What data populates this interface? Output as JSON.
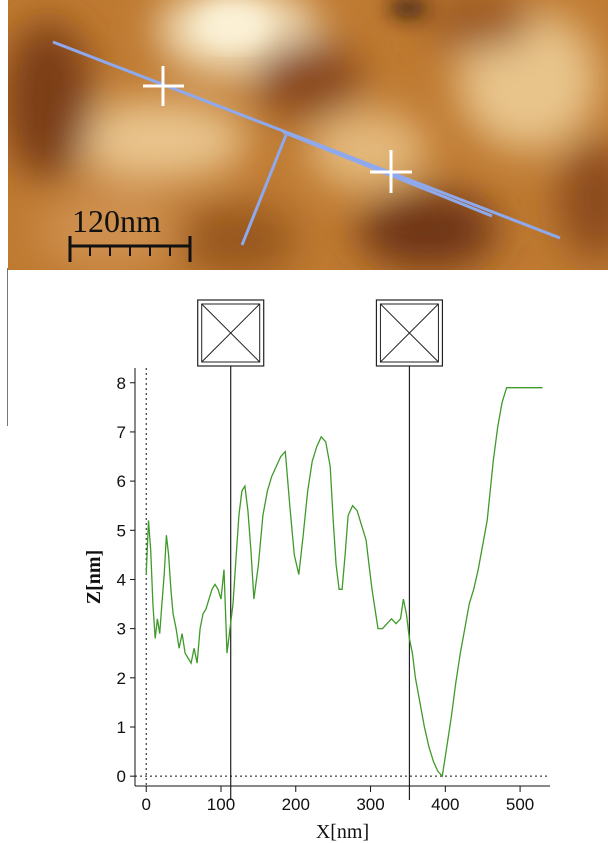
{
  "afm_image": {
    "scale_bar_label": "120nm",
    "colormap": [
      "#5a2a0c",
      "#b5661f",
      "#f2e3bf"
    ]
  },
  "chart_data": {
    "type": "line",
    "title": "",
    "xlabel": "X[nm]",
    "ylabel": "Z[nm]",
    "xlim": [
      -15,
      540
    ],
    "ylim": [
      -0.2,
      8.3
    ],
    "xticks": [
      0,
      100,
      200,
      300,
      400,
      500
    ],
    "yticks": [
      0,
      1,
      2,
      3,
      4,
      5,
      6,
      7,
      8
    ],
    "grid": false,
    "line_color": "#3f9a2a",
    "cursor_lines_x": [
      113,
      352
    ],
    "series": [
      {
        "x": [
          0,
          3,
          6,
          9,
          12,
          15,
          18,
          21,
          24,
          27,
          30,
          33,
          36,
          40,
          44,
          48,
          52,
          56,
          60,
          64,
          68,
          72,
          76,
          80,
          84,
          88,
          92,
          96,
          100,
          104,
          108,
          112,
          116,
          120,
          124,
          128,
          132,
          136,
          140,
          144,
          150,
          156,
          162,
          168,
          174,
          180,
          186,
          192,
          198,
          204,
          210,
          216,
          222,
          228,
          234,
          240,
          246,
          250,
          254,
          258,
          262,
          266,
          270,
          276,
          282,
          288,
          294,
          298,
          302,
          306,
          310,
          316,
          322,
          328,
          334,
          340,
          344,
          348,
          352,
          356,
          360,
          366,
          372,
          378,
          384,
          390,
          396,
          402,
          408,
          414,
          420,
          426,
          432,
          438,
          444,
          450,
          456,
          460,
          464,
          470,
          476,
          482,
          488,
          494,
          500,
          506,
          512,
          518,
          524,
          530
        ],
        "y": [
          4.1,
          5.2,
          4.6,
          3.5,
          2.8,
          3.2,
          2.9,
          3.5,
          4.1,
          4.9,
          4.5,
          3.8,
          3.3,
          3.0,
          2.6,
          2.9,
          2.5,
          2.4,
          2.3,
          2.6,
          2.3,
          3.0,
          3.3,
          3.4,
          3.6,
          3.8,
          3.9,
          3.8,
          3.6,
          4.2,
          2.5,
          3.0,
          3.5,
          4.4,
          5.3,
          5.8,
          5.9,
          5.4,
          4.6,
          3.6,
          4.3,
          5.3,
          5.8,
          6.1,
          6.3,
          6.5,
          6.6,
          5.5,
          4.5,
          4.1,
          4.9,
          5.8,
          6.4,
          6.7,
          6.9,
          6.8,
          6.3,
          5.2,
          4.3,
          3.8,
          3.8,
          4.5,
          5.3,
          5.5,
          5.4,
          5.1,
          4.8,
          4.3,
          3.8,
          3.4,
          3.0,
          3.0,
          3.1,
          3.2,
          3.1,
          3.2,
          3.6,
          3.3,
          2.8,
          2.5,
          2.0,
          1.5,
          1.0,
          0.6,
          0.3,
          0.1,
          0.0,
          0.6,
          1.2,
          1.9,
          2.5,
          3.0,
          3.5,
          3.8,
          4.2,
          4.7,
          5.2,
          5.8,
          6.4,
          7.1,
          7.6,
          7.9,
          7.9,
          7.9,
          7.9,
          7.9,
          7.9,
          7.9,
          7.9,
          7.9
        ]
      }
    ]
  }
}
